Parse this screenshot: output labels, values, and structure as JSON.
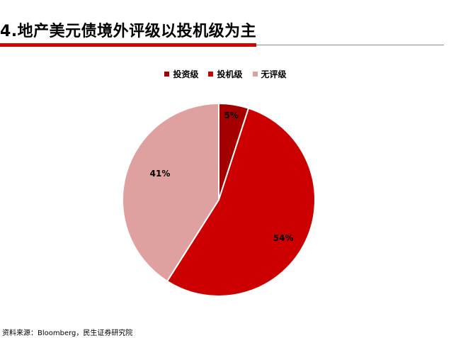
{
  "header": {
    "title": "4.地产美元债境外评级以投机级为主"
  },
  "chart_data": {
    "type": "pie",
    "slices": [
      {
        "name": "投资级",
        "value": 5,
        "label": "5%",
        "color": "#a50000"
      },
      {
        "name": "投机级",
        "value": 54,
        "label": "54%",
        "color": "#cc0000"
      },
      {
        "name": "无评级",
        "value": 41,
        "label": "41%",
        "color": "#dfa0a0"
      }
    ],
    "legend_position": "top"
  },
  "footer": {
    "source": "资料来源：Bloomberg，民生证券研究院"
  }
}
